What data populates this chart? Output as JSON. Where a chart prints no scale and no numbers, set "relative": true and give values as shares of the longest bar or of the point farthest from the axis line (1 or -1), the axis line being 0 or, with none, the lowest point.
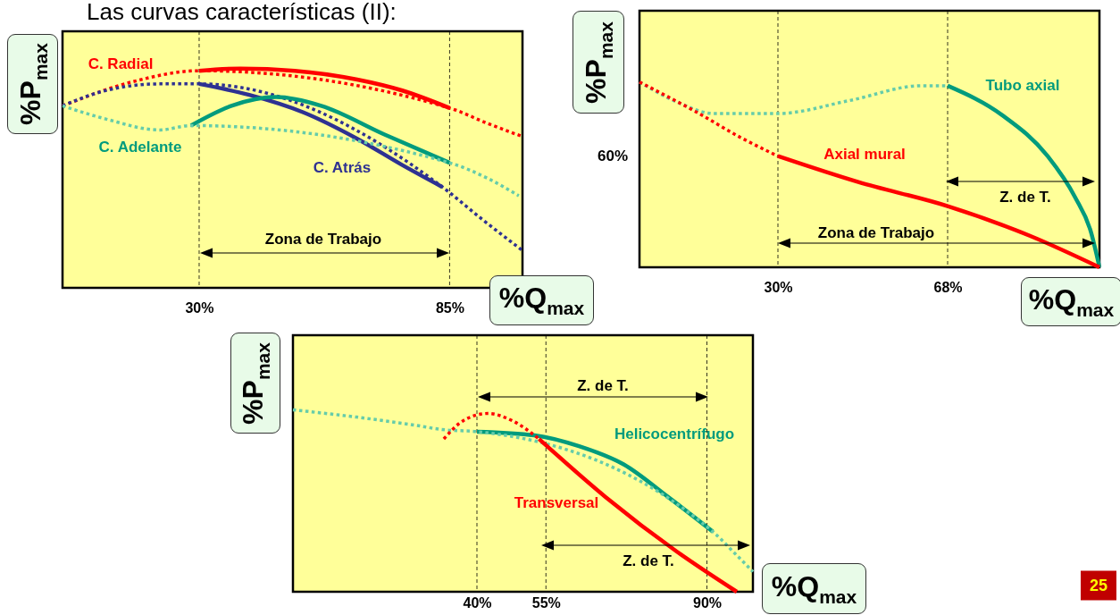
{
  "chart_data": [
    {
      "type": "line",
      "title": "Las curvas características (II):",
      "xlabel": "%Q$_{max}$",
      "ylabel": "%P$_{max}$",
      "relative": true,
      "tick_labels": "x",
      "xlim": [
        0,
        101
      ],
      "xticks": [
        {
          "value": 30,
          "label": "30%"
        },
        {
          "value": 85,
          "label": "85%"
        }
      ],
      "series": [
        {
          "name": "C. Radial",
          "color": "#ff0000",
          "line_style": "solid",
          "x": [
            30,
            39,
            51,
            64.7,
            74.6,
            85
          ],
          "values": [
            0.99,
            1.0,
            0.99,
            0.95,
            0.9,
            0.82
          ]
        },
        {
          "color": "#ff0000",
          "line_style": "dotted",
          "x": [
            0,
            15.4,
            30,
            null,
            85,
            93.3,
            101
          ],
          "values": [
            0.83,
            0.94,
            0.99,
            null,
            0.82,
            0.75,
            0.69
          ]
        },
        {
          "name": "C. Atrás",
          "color": "#2e3192",
          "line_style": "solid",
          "x": [
            30,
            41,
            52.9,
            64.7,
            74.6,
            83.4
          ],
          "values": [
            0.93,
            0.88,
            0.8,
            0.68,
            0.56,
            0.46
          ]
        },
        {
          "color": "#2e3192",
          "line_style": "dotted",
          "x": [
            0,
            9.5,
            21.3,
            30,
            null,
            83.4,
            92.3,
            101
          ],
          "values": [
            0.83,
            0.9,
            0.93,
            0.93,
            null,
            0.46,
            0.31,
            0.17
          ]
        },
        {
          "name": "C. Adelante",
          "color": "#009b7d",
          "line_style": "solid",
          "x": [
            28.2,
            37.1,
            46.9,
            56.8,
            70.6,
            85
          ],
          "values": [
            0.74,
            0.83,
            0.87,
            0.83,
            0.7,
            0.57
          ]
        },
        {
          "color": "#66ccaa",
          "line_style": "dotted",
          "x": [
            0,
            9.5,
            21.3,
            28.2,
            null,
            85,
            93.3,
            100.2
          ],
          "values": [
            0.83,
            0.77,
            0.72,
            0.74,
            null,
            0.57,
            0.5,
            0.42
          ]
        }
      ],
      "ref_lines": [
        {
          "axis": "x",
          "value": 30,
          "line_style": "dashed"
        },
        {
          "axis": "x",
          "value": 85,
          "line_style": "dashed"
        }
      ],
      "annotations": [
        "Zona de Trabajo"
      ]
    },
    {
      "type": "line",
      "xlabel": "%Q$_{max}$",
      "ylabel": "%P$_{max}$",
      "relative": true,
      "tick_labels": "x",
      "xlim": [
        -1,
        102
      ],
      "xticks": [
        {
          "value": 30,
          "label": "30%"
        },
        {
          "value": 68,
          "label": "68%"
        }
      ],
      "series": [
        {
          "name": "Tubo axial",
          "color": "#009b7d",
          "line_style": "solid",
          "x": [
            68,
            80.3,
            90.4,
            96.5,
            100.1,
            102
          ],
          "values": [
            0.98,
            0.82,
            0.6,
            0.38,
            0.19,
            0
          ]
        },
        {
          "color": "#66ccaa",
          "line_style": "dotted",
          "x": [
            -1,
            7.6,
            15.6,
            30,
            46,
            62.1,
            68
          ],
          "values": [
            1.0,
            0.89,
            0.83,
            0.83,
            0.9,
            0.98,
            0.98
          ]
        },
        {
          "name": "Axial mural",
          "color": "#ff0000",
          "line_style": "solid",
          "x": [
            30,
            48,
            68,
            86.4,
            102
          ],
          "values": [
            0.6,
            0.46,
            0.33,
            0.17,
            0
          ]
        },
        {
          "color": "#ff0000",
          "line_style": "dotted",
          "x": [
            -1,
            11.6,
            21.7,
            30
          ],
          "values": [
            1.0,
            0.84,
            0.7,
            0.6
          ]
        }
      ],
      "ref_lines": [
        {
          "axis": "x",
          "value": 30,
          "line_style": "dashed"
        },
        {
          "axis": "x",
          "value": 68,
          "line_style": "dashed"
        }
      ],
      "annotations": [
        "60%",
        "Z. de T.",
        "Zona de Trabajo"
      ]
    },
    {
      "type": "line",
      "xlabel": "%Q$_{max}$",
      "ylabel": "%P$_{max}$",
      "relative": true,
      "tick_labels": "x",
      "xlim": [
        0,
        100
      ],
      "xticks": [
        {
          "value": 40,
          "label": "40%"
        },
        {
          "value": 55,
          "label": "55%"
        },
        {
          "value": 90,
          "label": "90%"
        }
      ],
      "series": [
        {
          "name": "Helicocentrífugo",
          "color": "#009b7d",
          "line_style": "solid",
          "x": [
            40,
            52.5,
            62.2,
            71.9,
            81.6,
            91.3
          ],
          "values": [
            0.88,
            0.86,
            0.8,
            0.7,
            0.52,
            0.33
          ]
        },
        {
          "color": "#66ccaa",
          "line_style": "dotted",
          "x": [
            0,
            13.8,
            25.4,
            33.1,
            40,
            null,
            91.3,
            96.1,
            100
          ],
          "values": [
            1.0,
            0.96,
            0.92,
            0.89,
            0.88,
            null,
            0.33,
            0.21,
            0.11
          ]
        },
        {
          "name": "Transversal",
          "color": "#ff0000",
          "line_style": "solid",
          "x": [
            53.5,
            68,
            83.5,
            96.5
          ],
          "values": [
            0.84,
            0.52,
            0.22,
            0
          ]
        },
        {
          "color": "#ff0000",
          "line_style": "dotted",
          "x": [
            32.8,
            37,
            42.4,
            47.7,
            53.5
          ],
          "values": [
            0.84,
            0.94,
            0.98,
            0.94,
            0.84
          ]
        }
      ],
      "ref_lines": [
        {
          "axis": "x",
          "value": 40,
          "line_style": "dashed"
        },
        {
          "axis": "x",
          "value": 90,
          "line_style": "dashed"
        },
        {
          "axis": "x",
          "value": 55,
          "line_style": "dashed"
        }
      ],
      "annotations": [
        "Z. de T.",
        "Z. de T.",
        "25"
      ]
    }
  ]
}
